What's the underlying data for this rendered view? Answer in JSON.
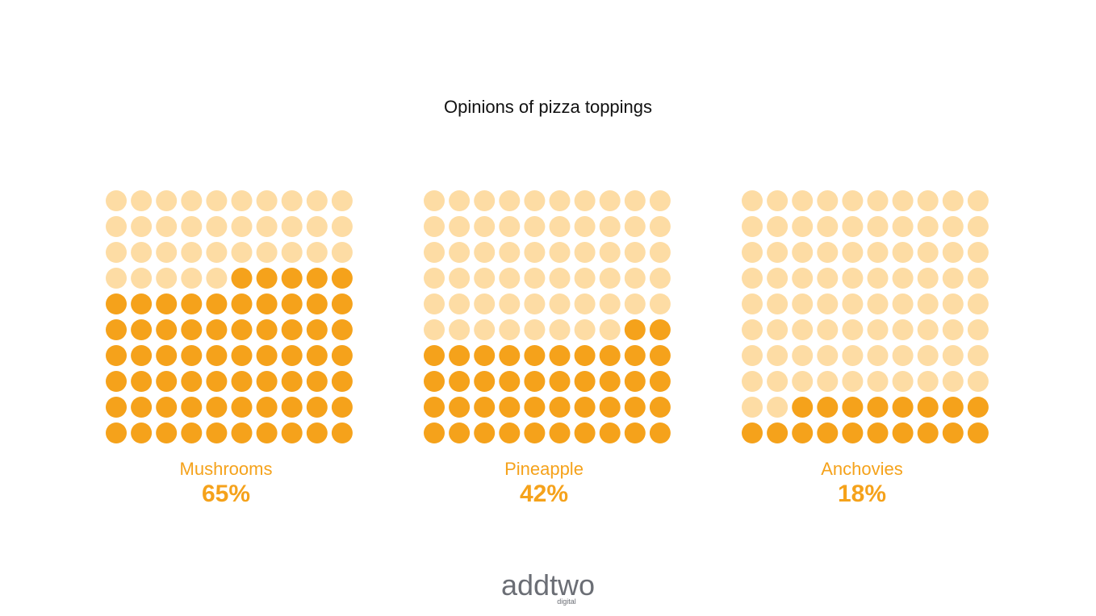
{
  "chart_data": {
    "type": "waffle",
    "title": "Opinions of pizza toppings",
    "grid": {
      "rows": 10,
      "cols": 10
    },
    "colors": {
      "filled": "#f5a21b",
      "empty": "#fddca4",
      "label": "#f5a21b"
    },
    "series": [
      {
        "name": "Mushrooms",
        "value": 65,
        "value_label": "65%"
      },
      {
        "name": "Pineapple",
        "value": 42,
        "value_label": "42%"
      },
      {
        "name": "Anchovies",
        "value": 18,
        "value_label": "18%"
      }
    ]
  },
  "logo": {
    "brand": "addtwo",
    "tagline": "digital",
    "color": "#6b6e75"
  }
}
